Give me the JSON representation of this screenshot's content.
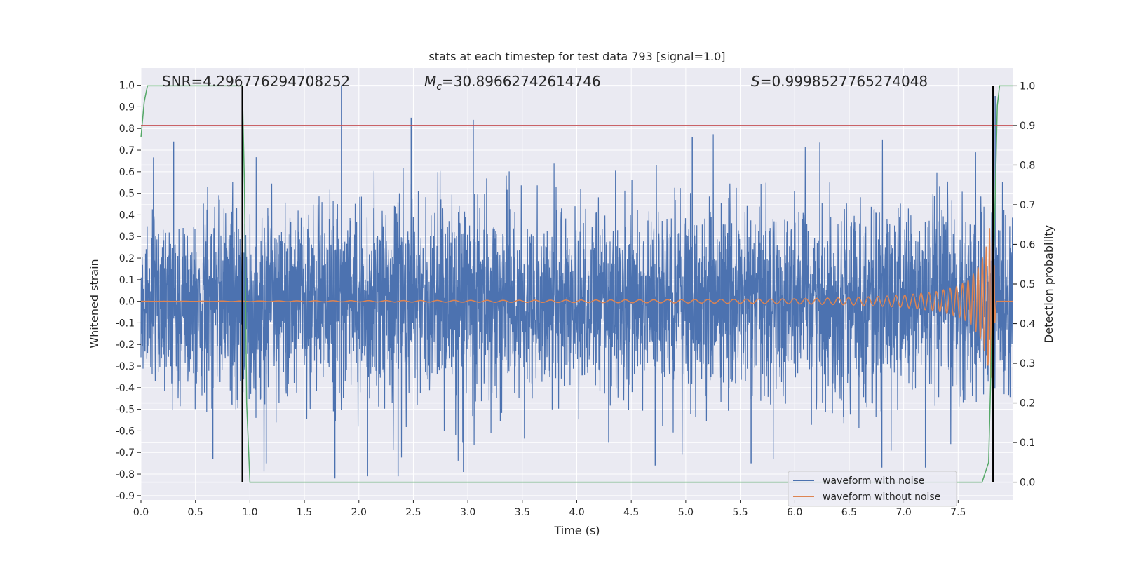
{
  "chart_data": {
    "type": "line",
    "title": "stats at each timestep for test data 793 [signal=1.0]",
    "xlabel": "Time (s)",
    "ylabel_left": "Whitened strain",
    "ylabel_right": "Detection probability",
    "xlim": [
      0.0,
      8.0
    ],
    "ylim_left": [
      -0.92,
      1.08
    ],
    "ylim_right": [
      -0.045,
      1.045
    ],
    "x_ticks": [
      "0.0",
      "0.5",
      "1.0",
      "1.5",
      "2.0",
      "2.5",
      "3.0",
      "3.5",
      "4.0",
      "4.5",
      "5.0",
      "5.5",
      "6.0",
      "6.5",
      "7.0",
      "7.5"
    ],
    "y_ticks_left": [
      "-0.9",
      "-0.8",
      "-0.7",
      "-0.6",
      "-0.5",
      "-0.4",
      "-0.3",
      "-0.2",
      "-0.1",
      "0.0",
      "0.1",
      "0.2",
      "0.3",
      "0.4",
      "0.5",
      "0.6",
      "0.7",
      "0.8",
      "0.9",
      "1.0"
    ],
    "y_ticks_right": [
      "0.0",
      "0.1",
      "0.2",
      "0.3",
      "0.4",
      "0.5",
      "0.6",
      "0.7",
      "0.8",
      "0.9",
      "1.0"
    ],
    "grid": true,
    "legend_position": "bottom-right",
    "annotations": {
      "snr": "SNR=4.296776294708252",
      "mc_symbol": "M",
      "mc_sub": "c",
      "mc_value": "=30.89662742614746",
      "s_symbol": "S",
      "s_value": "=0.9998527765274048"
    },
    "series": [
      {
        "name": "waveform with noise",
        "axis": "left",
        "color": "#4c72b0",
        "description": "noisy whitened strain, amplitude envelope approx 0.55 with spikes",
        "spikes": [
          [
            1.84,
            1.0
          ],
          [
            1.78,
            -0.82
          ],
          [
            2.08,
            -0.81
          ],
          [
            2.48,
            0.85
          ],
          [
            2.36,
            -0.81
          ],
          [
            2.96,
            -0.79
          ],
          [
            3.05,
            0.84
          ],
          [
            6.8,
            -0.77
          ],
          [
            7.84,
            0.95
          ],
          [
            0.3,
            0.74
          ],
          [
            4.72,
            -0.76
          ],
          [
            5.06,
            0.76
          ],
          [
            1.15,
            -0.75
          ],
          [
            0.66,
            -0.73
          ],
          [
            5.6,
            -0.75
          ],
          [
            7.2,
            -0.77
          ]
        ]
      },
      {
        "name": "waveform without noise",
        "axis": "left",
        "color": "#dd8452",
        "description": "chirp signal growing in amplitude and frequency toward merger near t=7.82",
        "points": [
          [
            0.0,
            0.0
          ],
          [
            3.5,
            0.005
          ],
          [
            5.0,
            0.008
          ],
          [
            6.0,
            0.012
          ],
          [
            6.5,
            0.017
          ],
          [
            7.0,
            0.028
          ],
          [
            7.3,
            0.045
          ],
          [
            7.5,
            0.07
          ],
          [
            7.6,
            0.1
          ],
          [
            7.7,
            0.17
          ],
          [
            7.76,
            0.26
          ],
          [
            7.8,
            0.38
          ],
          [
            7.82,
            0.3
          ],
          [
            7.85,
            0.0
          ]
        ]
      },
      {
        "axis": "right",
        "color": "#55a868",
        "description": "detection probability",
        "points": [
          [
            0.0,
            0.87
          ],
          [
            0.03,
            0.96
          ],
          [
            0.06,
            1.0
          ],
          [
            0.93,
            1.0
          ],
          [
            0.95,
            0.75
          ],
          [
            0.97,
            0.2
          ],
          [
            1.0,
            0.0
          ],
          [
            7.72,
            0.0
          ],
          [
            7.78,
            0.05
          ],
          [
            7.83,
            0.6
          ],
          [
            7.86,
            0.95
          ],
          [
            7.88,
            1.0
          ],
          [
            8.0,
            1.0
          ]
        ]
      },
      {
        "axis": "right",
        "color": "#c44e52",
        "description": "detection threshold",
        "points": [
          [
            0.0,
            0.9
          ],
          [
            8.0,
            0.9
          ]
        ]
      }
    ],
    "vertical_markers": [
      {
        "x": 0.93,
        "ymin": 0.0,
        "ymax": 1.0,
        "color": "#000000"
      },
      {
        "x": 7.82,
        "ymin": 0.0,
        "ymax": 1.0,
        "color": "#000000"
      }
    ]
  }
}
